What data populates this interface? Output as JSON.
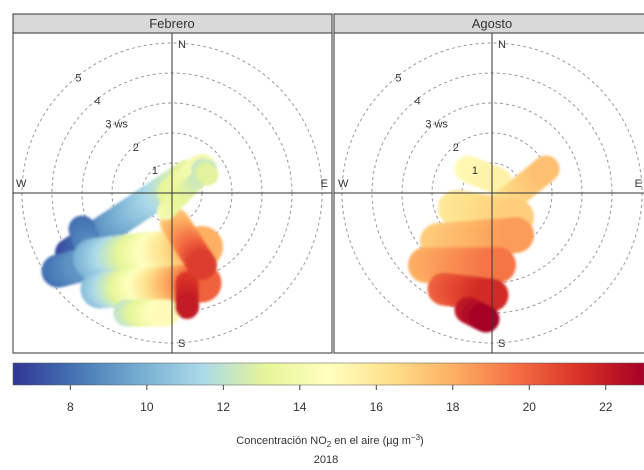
{
  "chart_data": {
    "type": "polar-plot",
    "panels": [
      {
        "title": "Febrero",
        "blobs": [
          {
            "from": [
              -3.4,
              -2.0
            ],
            "to": [
              0.5,
              0.6
            ],
            "c0": 7,
            "c1": 13,
            "r": 0.5
          },
          {
            "from": [
              -3.8,
              -2.6
            ],
            "to": [
              -3.0,
              -2.4
            ],
            "c0": 8,
            "c1": 9,
            "r": 0.55
          },
          {
            "from": [
              -3.0,
              -1.2
            ],
            "to": [
              -2.6,
              -2.2
            ],
            "c0": 8,
            "c1": 9,
            "r": 0.45
          },
          {
            "from": [
              -2.6,
              -2.2
            ],
            "to": [
              1.0,
              -1.8
            ],
            "c0": 10,
            "c1": 18,
            "r": 0.7
          },
          {
            "from": [
              -2.4,
              -3.2
            ],
            "to": [
              1.0,
              -3.0
            ],
            "c0": 10.5,
            "c1": 20,
            "r": 0.65
          },
          {
            "from": [
              -1.5,
              -4.0
            ],
            "to": [
              -0.2,
              -4.0
            ],
            "c0": 12,
            "c1": 15,
            "r": 0.45
          },
          {
            "from": [
              0.1,
              -1.0
            ],
            "to": [
              1.0,
              -2.4
            ],
            "c0": 17,
            "c1": 21,
            "r": 0.5
          },
          {
            "from": [
              0.5,
              -3.0
            ],
            "to": [
              0.5,
              -3.8
            ],
            "c0": 21,
            "c1": 22,
            "r": 0.4
          },
          {
            "from": [
              0.0,
              0.0
            ],
            "to": [
              1.0,
              0.8
            ],
            "c0": 13,
            "c1": 14,
            "r": 0.5
          },
          {
            "from": [
              -0.2,
              -0.6
            ],
            "to": [
              1.2,
              0.8
            ],
            "c0": 14,
            "c1": 12,
            "r": 0.3
          },
          {
            "from": [
              1.0,
              0.8
            ],
            "to": [
              1.2,
              0.6
            ],
            "c0": 12,
            "c1": 13,
            "r": 0.35
          }
        ]
      },
      {
        "title": "Agosto",
        "blobs": [
          {
            "from": [
              -0.8,
              0.8
            ],
            "to": [
              0.2,
              0.4
            ],
            "c0": 15,
            "c1": 15.5,
            "r": 0.45
          },
          {
            "from": [
              0.2,
              -0.5
            ],
            "to": [
              1.8,
              0.8
            ],
            "c0": 16,
            "c1": 17.5,
            "r": 0.45
          },
          {
            "from": [
              -1.2,
              -0.5
            ],
            "to": [
              0.8,
              -0.8
            ],
            "c0": 16,
            "c1": 17,
            "r": 0.6
          },
          {
            "from": [
              -1.8,
              -1.6
            ],
            "to": [
              0.8,
              -1.4
            ],
            "c0": 17,
            "c1": 18.5,
            "r": 0.6
          },
          {
            "from": [
              -2.2,
              -2.4
            ],
            "to": [
              0.2,
              -2.4
            ],
            "c0": 18,
            "c1": 19.5,
            "r": 0.6
          },
          {
            "from": [
              -1.6,
              -3.2
            ],
            "to": [
              0.0,
              -3.4
            ],
            "c0": 20,
            "c1": 21.5,
            "r": 0.55
          },
          {
            "from": [
              -0.8,
              -3.9
            ],
            "to": [
              -0.2,
              -4.2
            ],
            "c0": 22,
            "c1": 23,
            "r": 0.45
          }
        ]
      }
    ],
    "rings": [
      1,
      2,
      3,
      4,
      5
    ],
    "ring_label_suffix": "ws",
    "directions": {
      "N": "N",
      "E": "E",
      "S": "S",
      "W": "W"
    },
    "colorbar": {
      "min": 6.5,
      "max": 23,
      "ticks": [
        8,
        10,
        12,
        14,
        16,
        18,
        20,
        22
      ],
      "colors": [
        "#313695",
        "#4575b4",
        "#74add1",
        "#abd9e9",
        "#e6f598",
        "#ffffbf",
        "#fee08b",
        "#fdae61",
        "#f46d43",
        "#d73027",
        "#a50026"
      ],
      "label_prefix": "Concentración NO",
      "label_sub": "2",
      "label_mid": " en el aire (µg m",
      "label_sup": "−3",
      "label_suffix": ")",
      "year": "2018"
    }
  }
}
